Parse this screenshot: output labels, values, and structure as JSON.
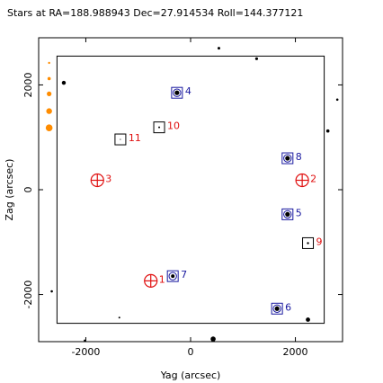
{
  "chart_data": {
    "type": "scatter",
    "title": "Stars at RA=188.988943 Dec=27.914534 Roll=144.377121",
    "xlabel": "Yag (arcsec)",
    "ylabel": "Zag (arcsec)",
    "xlim": [
      -2900,
      2900
    ],
    "ylim": [
      -2900,
      2900
    ],
    "xticks": [
      -2000,
      0,
      2000
    ],
    "yticks": [
      -2000,
      0,
      2000
    ],
    "xtick_labels": [
      "-2000",
      "0",
      "2000"
    ],
    "ytick_labels": [
      "-2000",
      "0",
      "2000"
    ],
    "grid": false,
    "legend": "none",
    "colors": {
      "guide": "#1a1aa0",
      "acq": "#000000",
      "fid": "#e01010",
      "label_guide": "#1a1aa0",
      "label_fid": "#e01010",
      "mag_scale": "#ff8c00",
      "field": "#000000",
      "frame": "#000000"
    },
    "ccd_box": {
      "y_min": -2550,
      "y_max": 2550,
      "z_min": -2550,
      "z_max": 2550
    },
    "field_stars": [
      {
        "y": -2420,
        "z": 2040,
        "r": 2.2
      },
      {
        "y": 540,
        "z": 2700,
        "r": 1.5
      },
      {
        "y": 1260,
        "z": 2500,
        "r": 1.6
      },
      {
        "y": 2800,
        "z": 1720,
        "r": 1.3
      },
      {
        "y": 2620,
        "z": 1120,
        "r": 1.8
      },
      {
        "y": -2650,
        "z": -1940,
        "r": 1.3
      },
      {
        "y": -1360,
        "z": -2440,
        "r": 1.0
      },
      {
        "y": 2240,
        "z": -2480,
        "r": 2.4
      },
      {
        "y": 430,
        "z": -2850,
        "r": 2.8
      },
      {
        "y": -2020,
        "z": -2880,
        "r": 1.2
      }
    ],
    "guide_stars": [
      {
        "id": "4",
        "y": -260,
        "z": 1850,
        "r": 2.6
      },
      {
        "id": "8",
        "y": 1850,
        "z": 600,
        "r": 2.6
      },
      {
        "id": "5",
        "y": 1850,
        "z": -470,
        "r": 2.6
      },
      {
        "id": "7",
        "y": -340,
        "z": -1650,
        "r": 2.0
      },
      {
        "id": "6",
        "y": 1650,
        "z": -2270,
        "r": 2.6
      }
    ],
    "acq_stars": [
      {
        "id": "10",
        "y": -600,
        "z": 1190,
        "r": 1.0
      },
      {
        "id": "11",
        "y": -1340,
        "z": 960,
        "r": 0.6
      },
      {
        "id": "9",
        "y": 2240,
        "z": -1020,
        "r": 1.2
      }
    ],
    "fid_lights": [
      {
        "id": "3",
        "y": -1780,
        "z": 180
      },
      {
        "id": "2",
        "y": 2130,
        "z": 180
      },
      {
        "id": "1",
        "y": -760,
        "z": -1740
      }
    ],
    "mag_scale": [
      {
        "y": -2700,
        "z": 2420,
        "r": 1.2
      },
      {
        "y": -2700,
        "z": 2120,
        "r": 1.8
      },
      {
        "y": -2700,
        "z": 1830,
        "r": 2.6
      },
      {
        "y": -2700,
        "z": 1500,
        "r": 3.2
      },
      {
        "y": -2700,
        "z": 1180,
        "r": 3.8
      }
    ]
  }
}
